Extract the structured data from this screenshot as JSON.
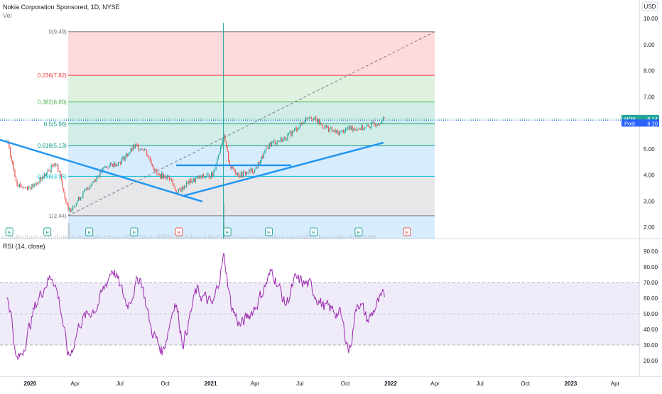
{
  "header": {
    "title": "Nokia Corporation Sponsored, 1D, NYSE",
    "vol_label": "Vol",
    "currency": "USD"
  },
  "price_badges": [
    {
      "label": "NOK",
      "value": "6.14",
      "color": "#26a69a"
    },
    {
      "label": "Post",
      "value": "6.10",
      "color": "#2962ff"
    }
  ],
  "earnings_marker": "E",
  "rsi_panel": {
    "title": "RSI (14, close)"
  },
  "colors": {
    "trendline": "#2196f3",
    "rsi_line": "#9c27b0",
    "rsi_band": "#7e57c2",
    "up": "#26a69a",
    "down": "#ef5350"
  },
  "chart_data": [
    {
      "type": "candlestick",
      "ylim": [
        1.6,
        10.3
      ],
      "y_ticks": [
        "2.00",
        "3.00",
        "4.00",
        "5.00",
        "6.00",
        "7.00",
        "8.00",
        "9.00",
        "10.00"
      ],
      "x_ticks": [
        "2020",
        "Apr",
        "Jul",
        "Oct",
        "2021",
        "Apr",
        "Jul",
        "Oct",
        "2022",
        "Apr",
        "Jul",
        "Oct",
        "2023",
        "Apr"
      ],
      "fibonacci": [
        {
          "label": "0(9.49)",
          "value": 9.49,
          "color": "#787b86"
        },
        {
          "label": "0.236(7.82)",
          "value": 7.82,
          "color": "#f23645"
        },
        {
          "label": "0.382(6.80)",
          "value": 6.8,
          "color": "#4caf50"
        },
        {
          "label": "0.5(5.96)",
          "value": 5.96,
          "color": "#089981"
        },
        {
          "label": "0.618(5.13)",
          "value": 5.13,
          "color": "#089981"
        },
        {
          "label": "0.786(3.95)",
          "value": 3.95,
          "color": "#00bcd4"
        },
        {
          "label": "1(2.44)",
          "value": 2.44,
          "color": "#787b86"
        }
      ],
      "last_price": 6.14,
      "post_price": 6.1,
      "price_path": [
        [
          "2019-11-15",
          5.3
        ],
        [
          "2019-12-05",
          3.7
        ],
        [
          "2019-12-20",
          3.5
        ],
        [
          "2020-01-10",
          3.6
        ],
        [
          "2020-02-10",
          4.2
        ],
        [
          "2020-02-20",
          4.5
        ],
        [
          "2020-03-01",
          4.1
        ],
        [
          "2020-03-18",
          2.6
        ],
        [
          "2020-04-05",
          3.0
        ],
        [
          "2020-05-01",
          3.6
        ],
        [
          "2020-06-01",
          4.3
        ],
        [
          "2020-07-01",
          4.5
        ],
        [
          "2020-08-01",
          5.1
        ],
        [
          "2020-08-20",
          5.0
        ],
        [
          "2020-09-15",
          4.0
        ],
        [
          "2020-10-10",
          3.9
        ],
        [
          "2020-10-25",
          3.3
        ],
        [
          "2020-11-15",
          3.7
        ],
        [
          "2020-12-10",
          3.9
        ],
        [
          "2021-01-05",
          4.0
        ],
        [
          "2021-01-27",
          5.5
        ],
        [
          "2021-02-10",
          4.3
        ],
        [
          "2021-03-01",
          4.0
        ],
        [
          "2021-04-01",
          4.2
        ],
        [
          "2021-05-01",
          5.2
        ],
        [
          "2021-06-01",
          5.4
        ],
        [
          "2021-07-01",
          5.9
        ],
        [
          "2021-07-20",
          6.3
        ],
        [
          "2021-08-15",
          5.9
        ],
        [
          "2021-09-15",
          5.6
        ],
        [
          "2021-10-10",
          5.8
        ],
        [
          "2021-11-10",
          5.8
        ],
        [
          "2021-12-20",
          6.14
        ]
      ]
    },
    {
      "type": "line",
      "name": "RSI (14, close)",
      "ylim": [
        15,
        95
      ],
      "y_ticks": [
        "20.00",
        "30.00",
        "40.00",
        "50.00",
        "60.00",
        "70.00",
        "80.00",
        "90.00"
      ],
      "band": [
        30,
        70
      ],
      "midline": 50,
      "x_ticks": [
        "2020",
        "Apr",
        "Jul",
        "Oct",
        "2021",
        "Apr",
        "Jul",
        "Oct",
        "2022",
        "Apr",
        "Jul",
        "Oct",
        "2023",
        "Apr"
      ],
      "values": [
        [
          "2019-11-15",
          62
        ],
        [
          "2019-11-25",
          45
        ],
        [
          "2019-12-02",
          18
        ],
        [
          "2019-12-15",
          25
        ],
        [
          "2020-01-10",
          55
        ],
        [
          "2020-02-01",
          70
        ],
        [
          "2020-02-15",
          75
        ],
        [
          "2020-03-01",
          55
        ],
        [
          "2020-03-18",
          20
        ],
        [
          "2020-04-10",
          45
        ],
        [
          "2020-05-15",
          55
        ],
        [
          "2020-06-15",
          80
        ],
        [
          "2020-07-15",
          55
        ],
        [
          "2020-08-10",
          75
        ],
        [
          "2020-09-01",
          40
        ],
        [
          "2020-09-25",
          25
        ],
        [
          "2020-10-20",
          60
        ],
        [
          "2020-11-05",
          30
        ],
        [
          "2020-12-01",
          65
        ],
        [
          "2021-01-05",
          55
        ],
        [
          "2021-01-27",
          88
        ],
        [
          "2021-02-10",
          55
        ],
        [
          "2021-03-01",
          42
        ],
        [
          "2021-04-01",
          55
        ],
        [
          "2021-05-05",
          78
        ],
        [
          "2021-06-01",
          55
        ],
        [
          "2021-06-20",
          72
        ],
        [
          "2021-07-20",
          68
        ],
        [
          "2021-08-15",
          55
        ],
        [
          "2021-09-20",
          50
        ],
        [
          "2021-10-08",
          25
        ],
        [
          "2021-10-25",
          60
        ],
        [
          "2021-11-15",
          45
        ],
        [
          "2021-12-01",
          55
        ],
        [
          "2021-12-20",
          62
        ]
      ]
    }
  ]
}
